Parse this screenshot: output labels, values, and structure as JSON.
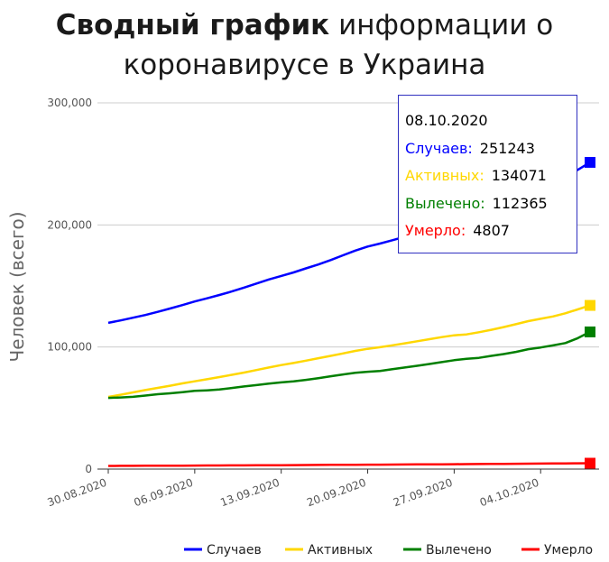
{
  "title": {
    "bold": "Сводный график",
    "line1_rest": " информации о",
    "line2": "коронавирусе в Украина"
  },
  "chart_data": {
    "type": "line",
    "ylabel": "Человек (всего)",
    "ylim": [
      0,
      300000
    ],
    "yticks": [
      0,
      100000,
      200000,
      300000
    ],
    "ytick_labels": [
      "0",
      "100,000",
      "200,000",
      "300,000"
    ],
    "xtick_labels": [
      "30.08.2020",
      "06.09.2020",
      "13.09.2020",
      "20.09.2020",
      "27.09.2020",
      "04.10.2020"
    ],
    "xticks": [
      "2020-08-30",
      "2020-09-06",
      "2020-09-13",
      "2020-09-20",
      "2020-09-27",
      "2020-10-04"
    ],
    "x_range": [
      "2020-08-30",
      "2020-10-08"
    ],
    "x": [
      "2020-08-30",
      "2020-08-31",
      "2020-09-01",
      "2020-09-02",
      "2020-09-03",
      "2020-09-04",
      "2020-09-05",
      "2020-09-06",
      "2020-09-07",
      "2020-09-08",
      "2020-09-09",
      "2020-09-10",
      "2020-09-11",
      "2020-09-12",
      "2020-09-13",
      "2020-09-14",
      "2020-09-15",
      "2020-09-16",
      "2020-09-17",
      "2020-09-18",
      "2020-09-19",
      "2020-09-20",
      "2020-09-21",
      "2020-09-22",
      "2020-09-23",
      "2020-09-24",
      "2020-09-25",
      "2020-09-26",
      "2020-09-27",
      "2020-09-28",
      "2020-09-29",
      "2020-09-30",
      "2020-10-01",
      "2020-10-02",
      "2020-10-03",
      "2020-10-04",
      "2020-10-05",
      "2020-10-06",
      "2020-10-07",
      "2020-10-08"
    ],
    "series": [
      {
        "name": "Случаев",
        "color": "#0000ff",
        "values": [
          119800,
          121800,
          124000,
          126200,
          128800,
          131500,
          134300,
          137300,
          139900,
          142600,
          145500,
          148700,
          152000,
          155300,
          158200,
          161100,
          164400,
          167600,
          171200,
          175100,
          179000,
          182300,
          184700,
          187500,
          190300,
          193300,
          196500,
          199900,
          203300,
          205800,
          208900,
          212300,
          216300,
          221000,
          225800,
          229400,
          233500,
          238800,
          245100,
          251243
        ]
      },
      {
        "name": "Активных",
        "color": "#ffd700",
        "values": [
          59100,
          60900,
          62800,
          64700,
          66500,
          68300,
          70200,
          71900,
          73600,
          75400,
          77200,
          79100,
          81100,
          83200,
          85200,
          86900,
          88800,
          90800,
          92700,
          94700,
          96800,
          98500,
          99800,
          101400,
          103000,
          104700,
          106400,
          108100,
          109600,
          110300,
          112100,
          114100,
          116300,
          118700,
          121200,
          123100,
          125000,
          127600,
          130800,
          134071
        ]
      },
      {
        "name": "Вылечено",
        "color": "#007f00",
        "values": [
          58300,
          58700,
          59200,
          60200,
          61300,
          62100,
          63000,
          64100,
          64500,
          65200,
          66400,
          67700,
          68800,
          70000,
          71000,
          71900,
          73100,
          74500,
          76000,
          77500,
          78900,
          79700,
          80400,
          81800,
          83200,
          84600,
          86100,
          87600,
          89200,
          90400,
          91100,
          92700,
          94200,
          96000,
          98200,
          99600,
          101300,
          103200,
          107200,
          112365
        ]
      },
      {
        "name": "Умерло",
        "color": "#ff0000",
        "values": [
          2600,
          2640,
          2680,
          2720,
          2760,
          2800,
          2840,
          2880,
          2920,
          2960,
          3010,
          3060,
          3110,
          3160,
          3210,
          3260,
          3320,
          3380,
          3440,
          3500,
          3560,
          3600,
          3650,
          3700,
          3760,
          3820,
          3890,
          3950,
          4010,
          4060,
          4120,
          4190,
          4260,
          4340,
          4420,
          4480,
          4550,
          4630,
          4720,
          4807
        ]
      }
    ],
    "legend_position": "bottom-right",
    "grid": true
  },
  "tooltip": {
    "date": "08.10.2020",
    "rows": [
      {
        "label": "Случаев:",
        "value": "251243",
        "color": "#0000ff"
      },
      {
        "label": "Активных:",
        "value": "134071",
        "color": "#ffd700"
      },
      {
        "label": "Вылечено:",
        "value": "112365",
        "color": "#007f00"
      },
      {
        "label": "Умерло:",
        "value": "4807",
        "color": "#ff0000"
      }
    ]
  }
}
